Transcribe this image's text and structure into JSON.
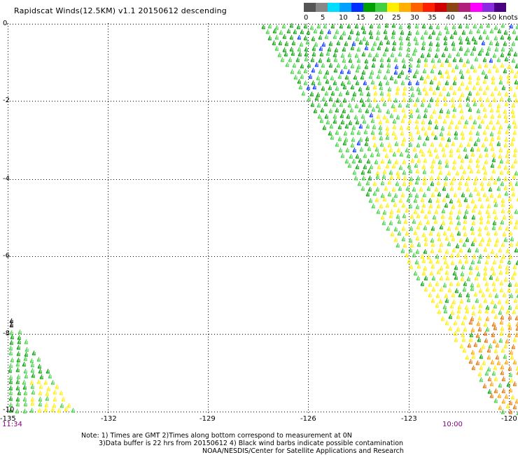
{
  "title": "Rapidscat Winds(12.5KM) v1.1 20150612 descending",
  "legend": {
    "colors": [
      "#555555",
      "#888888",
      "#00ddff",
      "#00a0ff",
      "#0030ff",
      "#00a000",
      "#40d040",
      "#ffee00",
      "#ffb000",
      "#ff6000",
      "#ff2000",
      "#d00000",
      "#8b4513",
      "#b0207a",
      "#ff00ff",
      "#8a2be2",
      "#4b0082"
    ],
    "labels": [
      "0",
      "5",
      "10",
      "15",
      "20",
      "25",
      "30",
      "35",
      "40",
      "45",
      ">50 knots"
    ]
  },
  "axes": {
    "y_ticks": [
      "0",
      "-2",
      "-4",
      "-6",
      "-8",
      "-10"
    ],
    "x_ticks": [
      "-135",
      "-132",
      "-129",
      "-126",
      "-123",
      "-120"
    ],
    "x_range": [
      -135,
      -120
    ],
    "y_range": [
      0,
      -10
    ]
  },
  "times": {
    "left": "11:34",
    "right": "10:00"
  },
  "notes": {
    "line1": "Note: 1) Times are GMT 2)Times along bottom correspond to measurement at 0N",
    "line2": "3)Data buffer is 22 hrs from 20150612 4) Black wind barbs indicate possible contamination",
    "line3": "NOAA/NESDIS/Center for Satellite Applications and Research"
  }
}
